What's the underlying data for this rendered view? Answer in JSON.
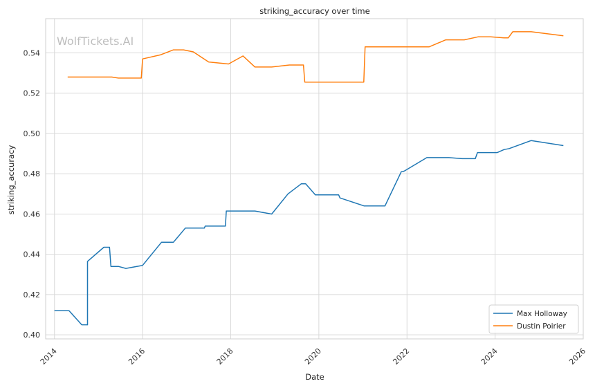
{
  "chart_data": {
    "type": "line",
    "title": "striking_accuracy over time",
    "xlabel": "Date",
    "ylabel": "striking_accuracy",
    "watermark": "WolfTickets.AI",
    "xlim": [
      2013.8,
      2026.0
    ],
    "ylim": [
      0.398,
      0.557
    ],
    "xticks": [
      "2014",
      "2016",
      "2018",
      "2020",
      "2022",
      "2024",
      "2026"
    ],
    "yticks": [
      "0.40",
      "0.42",
      "0.44",
      "0.46",
      "0.48",
      "0.50",
      "0.52",
      "0.54"
    ],
    "grid": true,
    "legend_position": "bottom-right",
    "series": [
      {
        "name": "Max Holloway",
        "color": "#1f77b4",
        "x": [
          2014.0,
          2014.33,
          2014.62,
          2014.75,
          2014.75,
          2015.12,
          2015.25,
          2015.28,
          2015.45,
          2015.62,
          2016.0,
          2016.43,
          2016.7,
          2016.97,
          2017.4,
          2017.42,
          2017.88,
          2017.9,
          2018.55,
          2018.93,
          2019.3,
          2019.6,
          2019.7,
          2019.92,
          2020.45,
          2020.48,
          2021.03,
          2021.5,
          2021.87,
          2021.9,
          2021.95,
          2022.45,
          2022.95,
          2023.25,
          2023.55,
          2023.6,
          2024.05,
          2024.2,
          2024.32,
          2024.82,
          2025.55
        ],
        "y": [
          0.412,
          0.412,
          0.405,
          0.405,
          0.4365,
          0.4435,
          0.4435,
          0.434,
          0.434,
          0.433,
          0.4345,
          0.446,
          0.446,
          0.453,
          0.453,
          0.454,
          0.454,
          0.4615,
          0.4615,
          0.46,
          0.47,
          0.475,
          0.475,
          0.4695,
          0.4695,
          0.468,
          0.464,
          0.464,
          0.481,
          0.481,
          0.4815,
          0.488,
          0.488,
          0.4875,
          0.4875,
          0.4905,
          0.4905,
          0.492,
          0.4925,
          0.4965,
          0.494
        ]
      },
      {
        "name": "Dustin Poirier",
        "color": "#ff7f0e",
        "x": [
          2014.3,
          2015.1,
          2015.3,
          2015.45,
          2015.97,
          2016.0,
          2016.4,
          2016.7,
          2016.93,
          2017.15,
          2017.5,
          2017.95,
          2018.28,
          2018.55,
          2018.93,
          2019.33,
          2019.65,
          2019.68,
          2020.1,
          2021.02,
          2021.05,
          2021.9,
          2022.5,
          2022.88,
          2023.3,
          2023.62,
          2023.9,
          2024.2,
          2024.3,
          2024.4,
          2024.82,
          2025.55
        ],
        "y": [
          0.528,
          0.528,
          0.528,
          0.5275,
          0.5275,
          0.537,
          0.539,
          0.5415,
          0.5415,
          0.5405,
          0.5355,
          0.5345,
          0.5385,
          0.533,
          0.533,
          0.534,
          0.534,
          0.5255,
          0.5255,
          0.5255,
          0.543,
          0.543,
          0.543,
          0.5465,
          0.5465,
          0.548,
          0.548,
          0.5475,
          0.5475,
          0.5505,
          0.5505,
          0.5485
        ]
      }
    ]
  }
}
